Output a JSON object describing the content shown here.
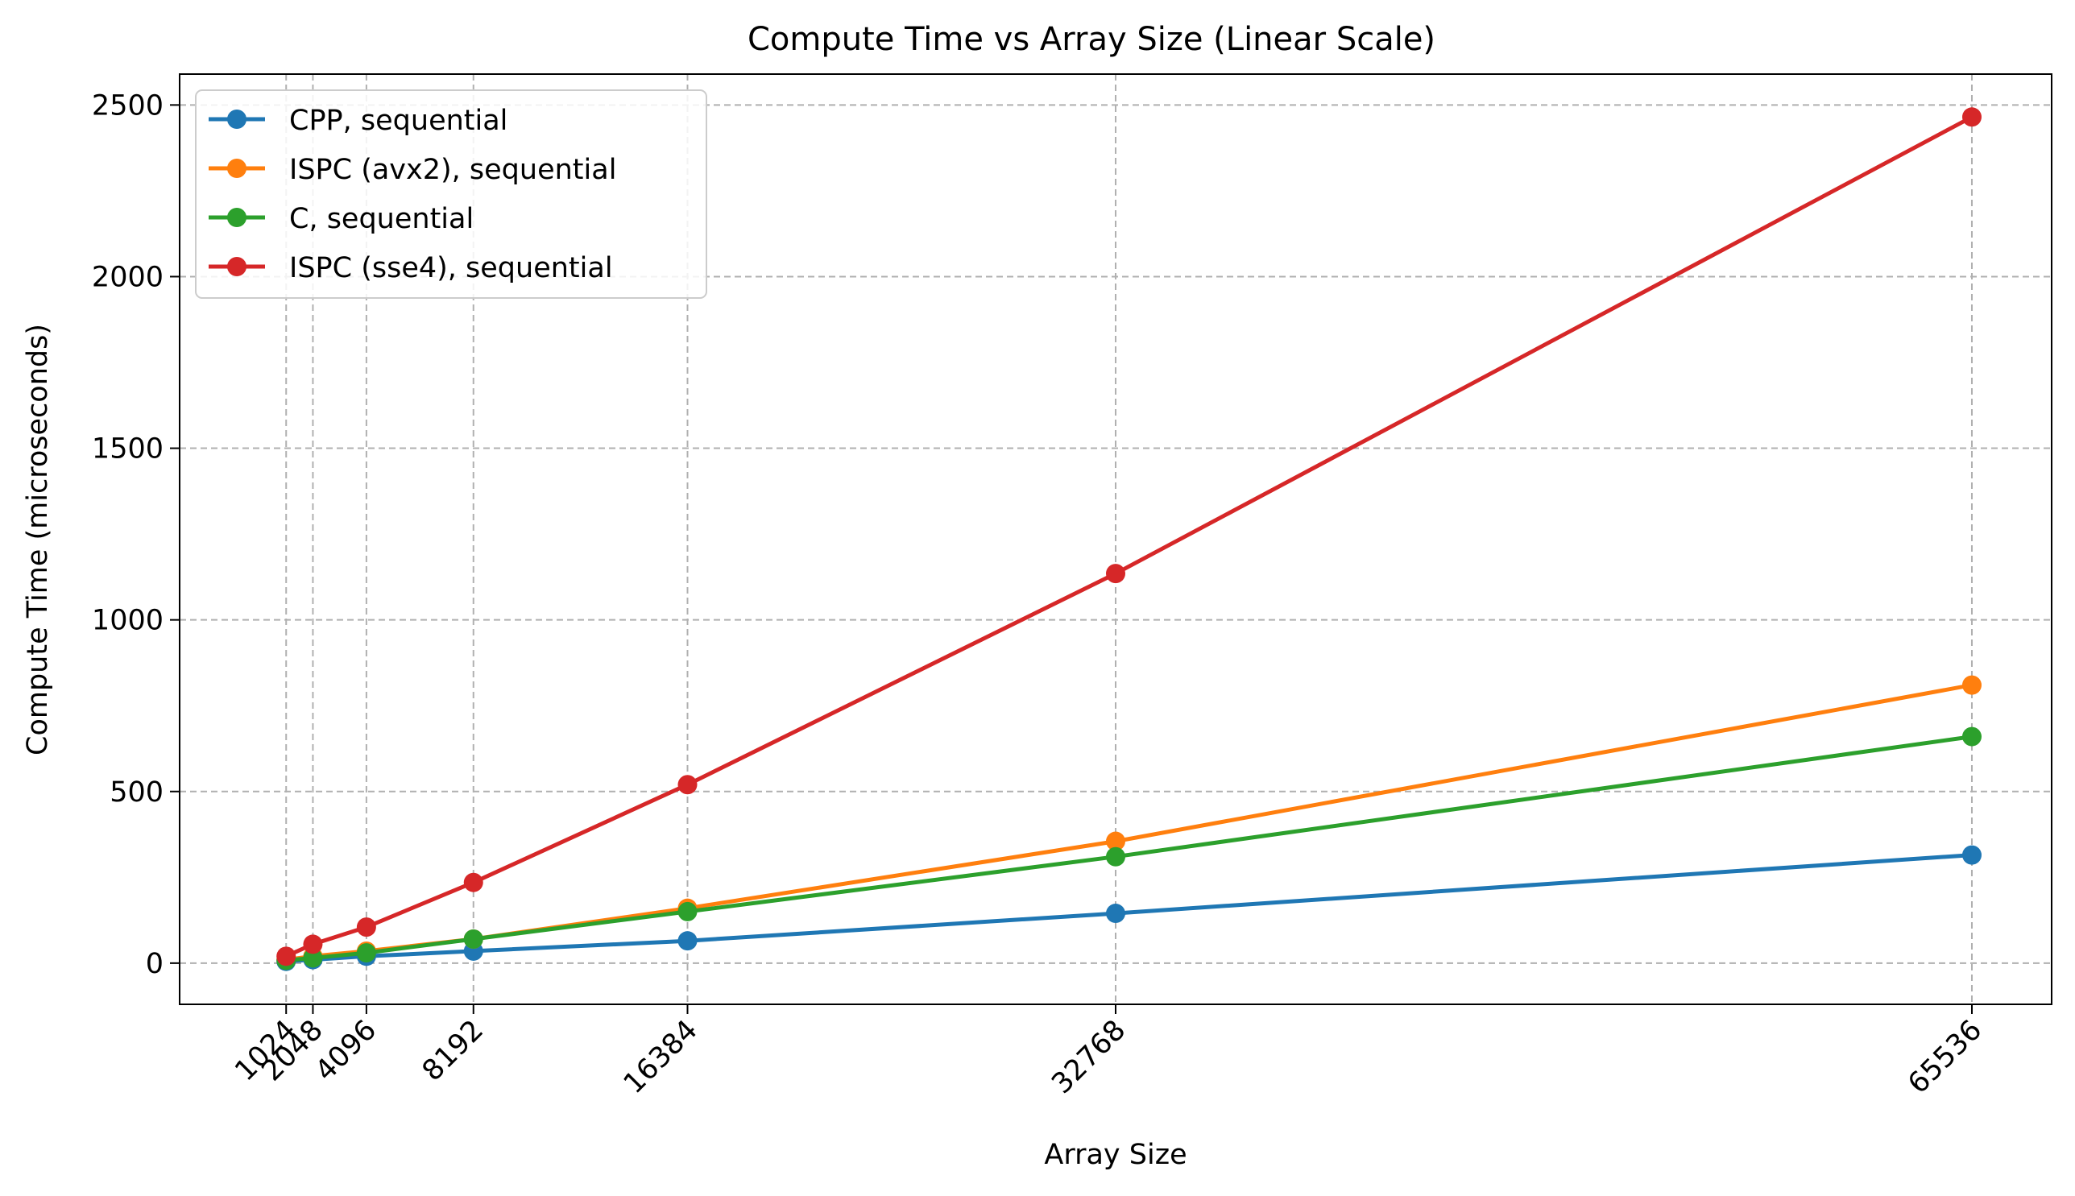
{
  "chart_data": {
    "type": "line",
    "title": "Compute Time vs Array Size (Linear Scale)",
    "xlabel": "Array Size",
    "ylabel": "Compute Time (microseconds)",
    "x": [
      1024,
      2048,
      4096,
      8192,
      16384,
      32768,
      65536
    ],
    "xticks": [
      "1024",
      "2048",
      "4096",
      "8192",
      "16384",
      "32768",
      "65536"
    ],
    "yticks": [
      0,
      500,
      1000,
      1500,
      2000,
      2500
    ],
    "xlim": [
      -3052,
      68588
    ],
    "ylim": [
      -120,
      2590
    ],
    "grid": true,
    "legend_position": "upper-left",
    "series": [
      {
        "name": "CPP, sequential",
        "color": "#1f77b4",
        "values": [
          5,
          10,
          20,
          35,
          65,
          145,
          315
        ]
      },
      {
        "name": "ISPC (avx2), sequential",
        "color": "#ff7f0e",
        "values": [
          10,
          20,
          35,
          70,
          160,
          355,
          810
        ]
      },
      {
        "name": "C, sequential",
        "color": "#2ca02c",
        "values": [
          8,
          15,
          30,
          70,
          150,
          310,
          660
        ]
      },
      {
        "name": "ISPC (sse4), sequential",
        "color": "#d62728",
        "values": [
          20,
          55,
          105,
          235,
          520,
          1135,
          2465
        ]
      }
    ]
  }
}
